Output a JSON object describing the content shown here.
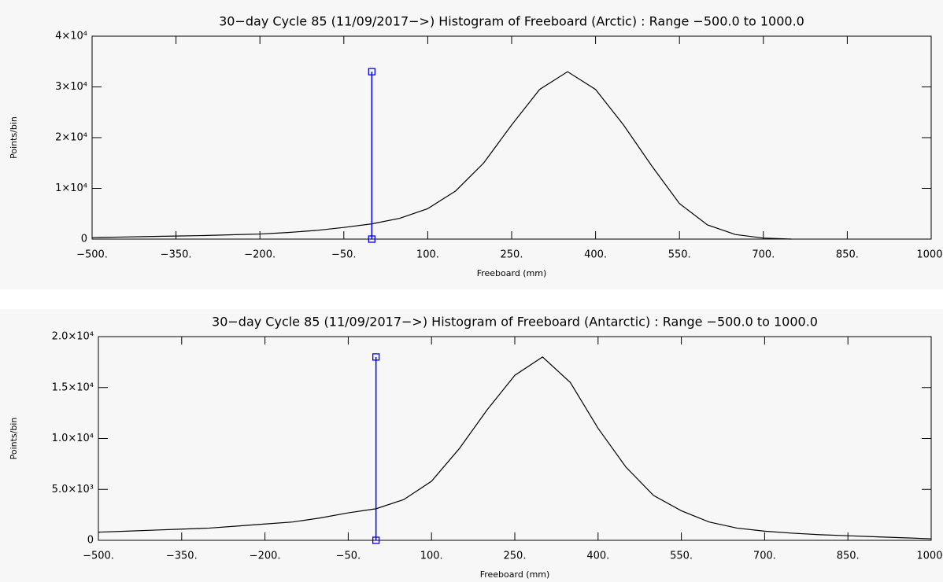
{
  "chart_data": [
    {
      "type": "line",
      "title": "30−day Cycle 85 (11/09/2017−>) Histogram of Freeboard (Arctic) :  Range −500.0 to 1000.0",
      "xlabel": "Freeboard (mm)",
      "ylabel": "Points/bin",
      "x": [
        -500,
        -450,
        -400,
        -350,
        -300,
        -250,
        -200,
        -150,
        -100,
        -50,
        0,
        50,
        100,
        150,
        200,
        250,
        300,
        350,
        400,
        450,
        500,
        550,
        600,
        650,
        700,
        750
      ],
      "series": [
        {
          "color": "#000000",
          "values": [
            300,
            400,
            500,
            600,
            700,
            850,
            1000,
            1300,
            1700,
            2300,
            3000,
            4100,
            6000,
            9500,
            15000,
            22500,
            29500,
            33000,
            29500,
            22500,
            14500,
            7000,
            2800,
            900,
            200,
            0
          ]
        }
      ],
      "marker": {
        "x": 0,
        "y": [
          0,
          33000
        ],
        "color": "#0000ff"
      },
      "xlim": [
        -500,
        1000
      ],
      "xticks": [
        {
          "value": -500,
          "label": "−500."
        },
        {
          "value": -350,
          "label": "−350."
        },
        {
          "value": -200,
          "label": "−200."
        },
        {
          "value": -50,
          "label": "−50."
        },
        {
          "value": 100,
          "label": "100."
        },
        {
          "value": 250,
          "label": "250."
        },
        {
          "value": 400,
          "label": "400."
        },
        {
          "value": 550,
          "label": "550."
        },
        {
          "value": 700,
          "label": "700."
        },
        {
          "value": 850,
          "label": "850."
        },
        {
          "value": 1000,
          "label": "1000."
        }
      ],
      "ylim": [
        0,
        40000
      ],
      "yticks": [
        0,
        {
          "value": 10000,
          "label": "1×10⁴"
        },
        {
          "value": 20000,
          "label": "2×10⁴"
        },
        {
          "value": 30000,
          "label": "3×10⁴"
        },
        {
          "value": 40000,
          "label": "4×10⁴"
        }
      ]
    },
    {
      "type": "line",
      "title": "30−day Cycle 85 (11/09/2017−>) Histogram of Freeboard (Antarctic) :  Range −500.0 to 1000.0",
      "xlabel": "Freeboard (mm)",
      "ylabel": "Points/bin",
      "x": [
        -500,
        -450,
        -400,
        -350,
        -300,
        -250,
        -200,
        -150,
        -100,
        -50,
        0,
        50,
        100,
        150,
        200,
        250,
        300,
        350,
        400,
        450,
        500,
        550,
        600,
        650,
        700,
        750,
        800,
        850,
        900,
        950,
        1000
      ],
      "series": [
        {
          "color": "#000000",
          "values": [
            800,
            900,
            1000,
            1100,
            1200,
            1400,
            1600,
            1800,
            2200,
            2700,
            3100,
            4000,
            5800,
            9000,
            12800,
            16200,
            18000,
            15500,
            11000,
            7200,
            4400,
            2900,
            1800,
            1200,
            900,
            700,
            550,
            450,
            350,
            250,
            150
          ]
        }
      ],
      "marker": {
        "x": 0,
        "y": [
          0,
          18000
        ],
        "color": "#0000ff"
      },
      "xlim": [
        -500,
        1000
      ],
      "xticks": [
        {
          "value": -500,
          "label": "−500."
        },
        {
          "value": -350,
          "label": "−350."
        },
        {
          "value": -200,
          "label": "−200."
        },
        {
          "value": -50,
          "label": "−50."
        },
        {
          "value": 100,
          "label": "100."
        },
        {
          "value": 250,
          "label": "250."
        },
        {
          "value": 400,
          "label": "400."
        },
        {
          "value": 550,
          "label": "550."
        },
        {
          "value": 700,
          "label": "700."
        },
        {
          "value": 850,
          "label": "850."
        },
        {
          "value": 1000,
          "label": "1000."
        }
      ],
      "ylim": [
        0,
        20000
      ],
      "yticks": [
        0,
        {
          "value": 5000,
          "label": "5.0×10³"
        },
        {
          "value": 10000,
          "label": "1.0×10⁴"
        },
        {
          "value": 15000,
          "label": "1.5×10⁴"
        },
        {
          "value": 20000,
          "label": "2.0×10⁴"
        }
      ]
    }
  ]
}
